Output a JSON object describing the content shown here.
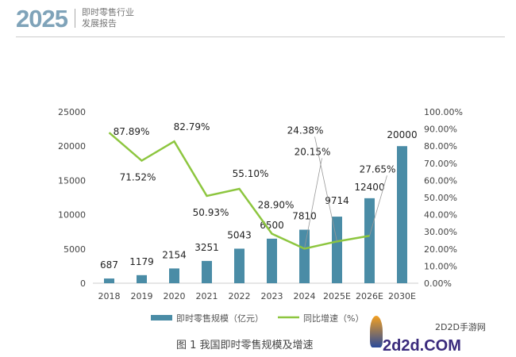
{
  "header": {
    "year": "2025",
    "title_line1": "即时零售行业",
    "title_line2": "发展报告"
  },
  "caption": "图 1  我国即时零售规模及增速",
  "watermark": {
    "line1": "2D2D手游网",
    "line2": "2d2d.COM"
  },
  "chart_data": {
    "type": "bar+line",
    "categories": [
      "2018",
      "2019",
      "2020",
      "2021",
      "2022",
      "2023",
      "2024",
      "2025E",
      "2026E",
      "2030E"
    ],
    "series": [
      {
        "name": "即时零售规模（亿元）",
        "type": "bar",
        "axis": "left",
        "color": "#4a8ca6",
        "values": [
          687,
          1179,
          2154,
          3251,
          5043,
          6500,
          7810,
          9714,
          12400,
          20000
        ],
        "labels": [
          "687",
          "1179",
          "2154",
          "3251",
          "5043",
          "6500",
          "7810",
          "9714",
          "12400",
          "20000"
        ]
      },
      {
        "name": "同比增速（%）",
        "type": "line",
        "axis": "right",
        "color": "#8dc63f",
        "values": [
          87.89,
          71.52,
          82.79,
          50.93,
          55.1,
          28.9,
          20.15,
          24.38,
          27.65,
          null
        ],
        "labels": [
          "87.89%",
          "71.52%",
          "82.79%",
          "50.93%",
          "55.10%",
          "28.90%",
          "20.15%",
          "24.38%",
          "27.65%",
          ""
        ]
      }
    ],
    "ylim_left": [
      0,
      25000
    ],
    "yticks_left": [
      "0",
      "5000",
      "10000",
      "15000",
      "20000",
      "25000"
    ],
    "ylim_right": [
      0,
      100
    ],
    "yticks_right": [
      "0.00%",
      "10.00%",
      "20.00%",
      "30.00%",
      "40.00%",
      "50.00%",
      "60.00%",
      "70.00%",
      "80.00%",
      "90.00%",
      "100.00%"
    ],
    "grid": false,
    "legend": "bottom"
  }
}
